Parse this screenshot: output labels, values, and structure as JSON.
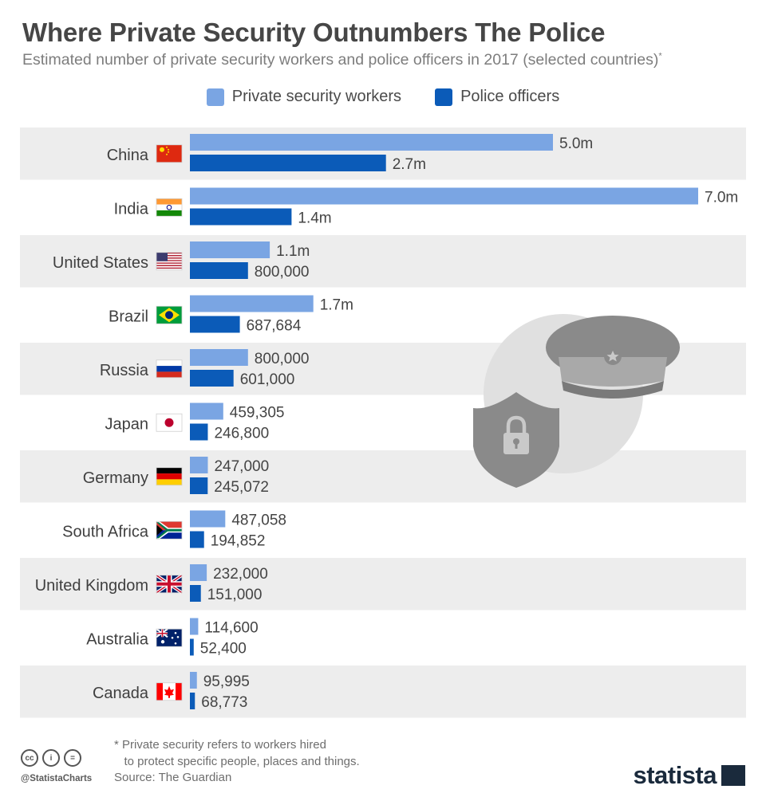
{
  "header": {
    "title": "Where Private Security Outnumbers The Police",
    "subtitle": "Estimated number of private security workers and police officers in 2017 (selected countries)",
    "subtitle_mark": "*"
  },
  "legend": {
    "private_label": "Private security workers",
    "police_label": "Police officers"
  },
  "colors": {
    "private": "#7aa5e3",
    "police": "#0b5bb8",
    "row_band": "#ededed",
    "value_text": "#444444",
    "illustration": "#8a8a8a"
  },
  "chart_data": {
    "type": "bar",
    "orientation": "horizontal",
    "categories": [
      "China",
      "India",
      "United States",
      "Brazil",
      "Russia",
      "Japan",
      "Germany",
      "South Africa",
      "United Kingdom",
      "Australia",
      "Canada"
    ],
    "series": [
      {
        "name": "Private security workers",
        "values": [
          5000000,
          7000000,
          1100000,
          1700000,
          800000,
          459305,
          247000,
          487058,
          232000,
          114600,
          95995
        ],
        "labels": [
          "5.0m",
          "7.0m",
          "1.1m",
          "1.7m",
          "800,000",
          "459,305",
          "247,000",
          "487,058",
          "232,000",
          "114,600",
          "95,995"
        ]
      },
      {
        "name": "Police officers",
        "values": [
          2700000,
          1400000,
          800000,
          687684,
          601000,
          246800,
          245072,
          194852,
          151000,
          52400,
          68773
        ],
        "labels": [
          "2.7m",
          "1.4m",
          "800,000",
          "687,684",
          "601,000",
          "246,800",
          "245,072",
          "194,852",
          "151,000",
          "52,400",
          "68,773"
        ]
      }
    ],
    "xlim": [
      0,
      7000000
    ],
    "grid": false,
    "legend_position": "top"
  },
  "footer": {
    "footnote": "* Private security refers to workers hired\n   to protect specific people, places and things.",
    "source": "Source: The Guardian",
    "handle": "@StatistaCharts",
    "brand": "statista",
    "cc_icons": [
      "cc-icon",
      "by-icon",
      "nd-icon"
    ]
  }
}
